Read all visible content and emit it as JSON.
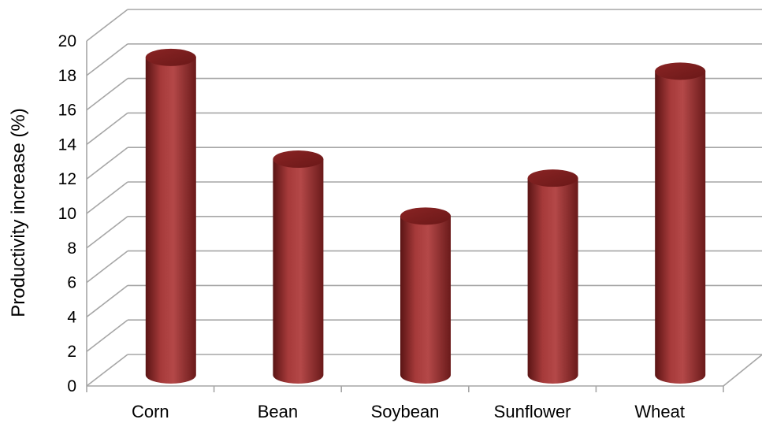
{
  "chart_data": {
    "type": "bar",
    "style": "3d-cylinder",
    "title": "",
    "xlabel": "",
    "ylabel": "Productivity increase (%)",
    "ylim": [
      0,
      20
    ],
    "yticks": [
      "0",
      "2",
      "4",
      "6",
      "8",
      "10",
      "12",
      "14",
      "16",
      "18",
      "20"
    ],
    "categories": [
      "Corn",
      "Bean",
      "Soybean",
      "Sunflower",
      "Wheat"
    ],
    "values": [
      18.5,
      12.6,
      9.3,
      11.5,
      17.7
    ],
    "grid": true,
    "legend": "none",
    "colors": {
      "bar": "#9b3232",
      "bar_dark": "#5a1414",
      "bar_light": "#c46060",
      "grid": "#a6a6a6"
    }
  }
}
